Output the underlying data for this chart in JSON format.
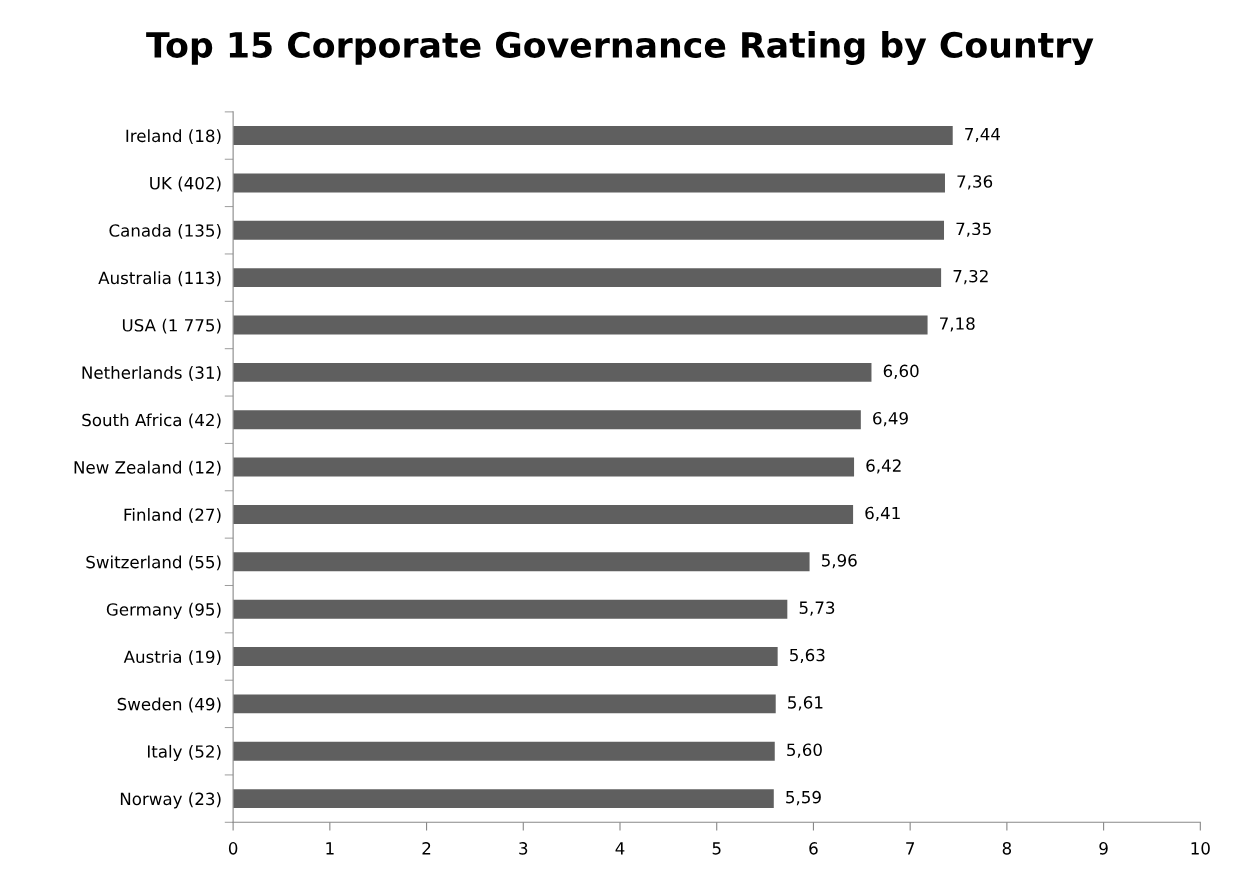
{
  "chart_data": {
    "type": "bar",
    "orientation": "horizontal",
    "title": "Top 15 Corporate Governance Rating by Country",
    "categories": [
      "Ireland (18)",
      "UK (402)",
      "Canada (135)",
      "Australia (113)",
      "USA (1 775)",
      "Netherlands (31)",
      "South Africa (42)",
      "New Zealand (12)",
      "Finland (27)",
      "Switzerland (55)",
      "Germany (95)",
      "Austria (19)",
      "Sweden (49)",
      "Italy (52)",
      "Norway (23)"
    ],
    "values": [
      7.44,
      7.36,
      7.35,
      7.32,
      7.18,
      6.6,
      6.49,
      6.42,
      6.41,
      5.96,
      5.73,
      5.63,
      5.61,
      5.6,
      5.59
    ],
    "value_labels": [
      "7,44",
      "7,36",
      "7,35",
      "7,32",
      "7,18",
      "6,60",
      "6,49",
      "6,42",
      "6,41",
      "5,96",
      "5,73",
      "5,63",
      "5,61",
      "5,60",
      "5,59"
    ],
    "color": "#5f5f5f",
    "xlim": [
      0,
      10
    ],
    "xticks": [
      0,
      1,
      2,
      3,
      4,
      5,
      6,
      7,
      8,
      9,
      10
    ],
    "grid": false,
    "legend": false
  }
}
